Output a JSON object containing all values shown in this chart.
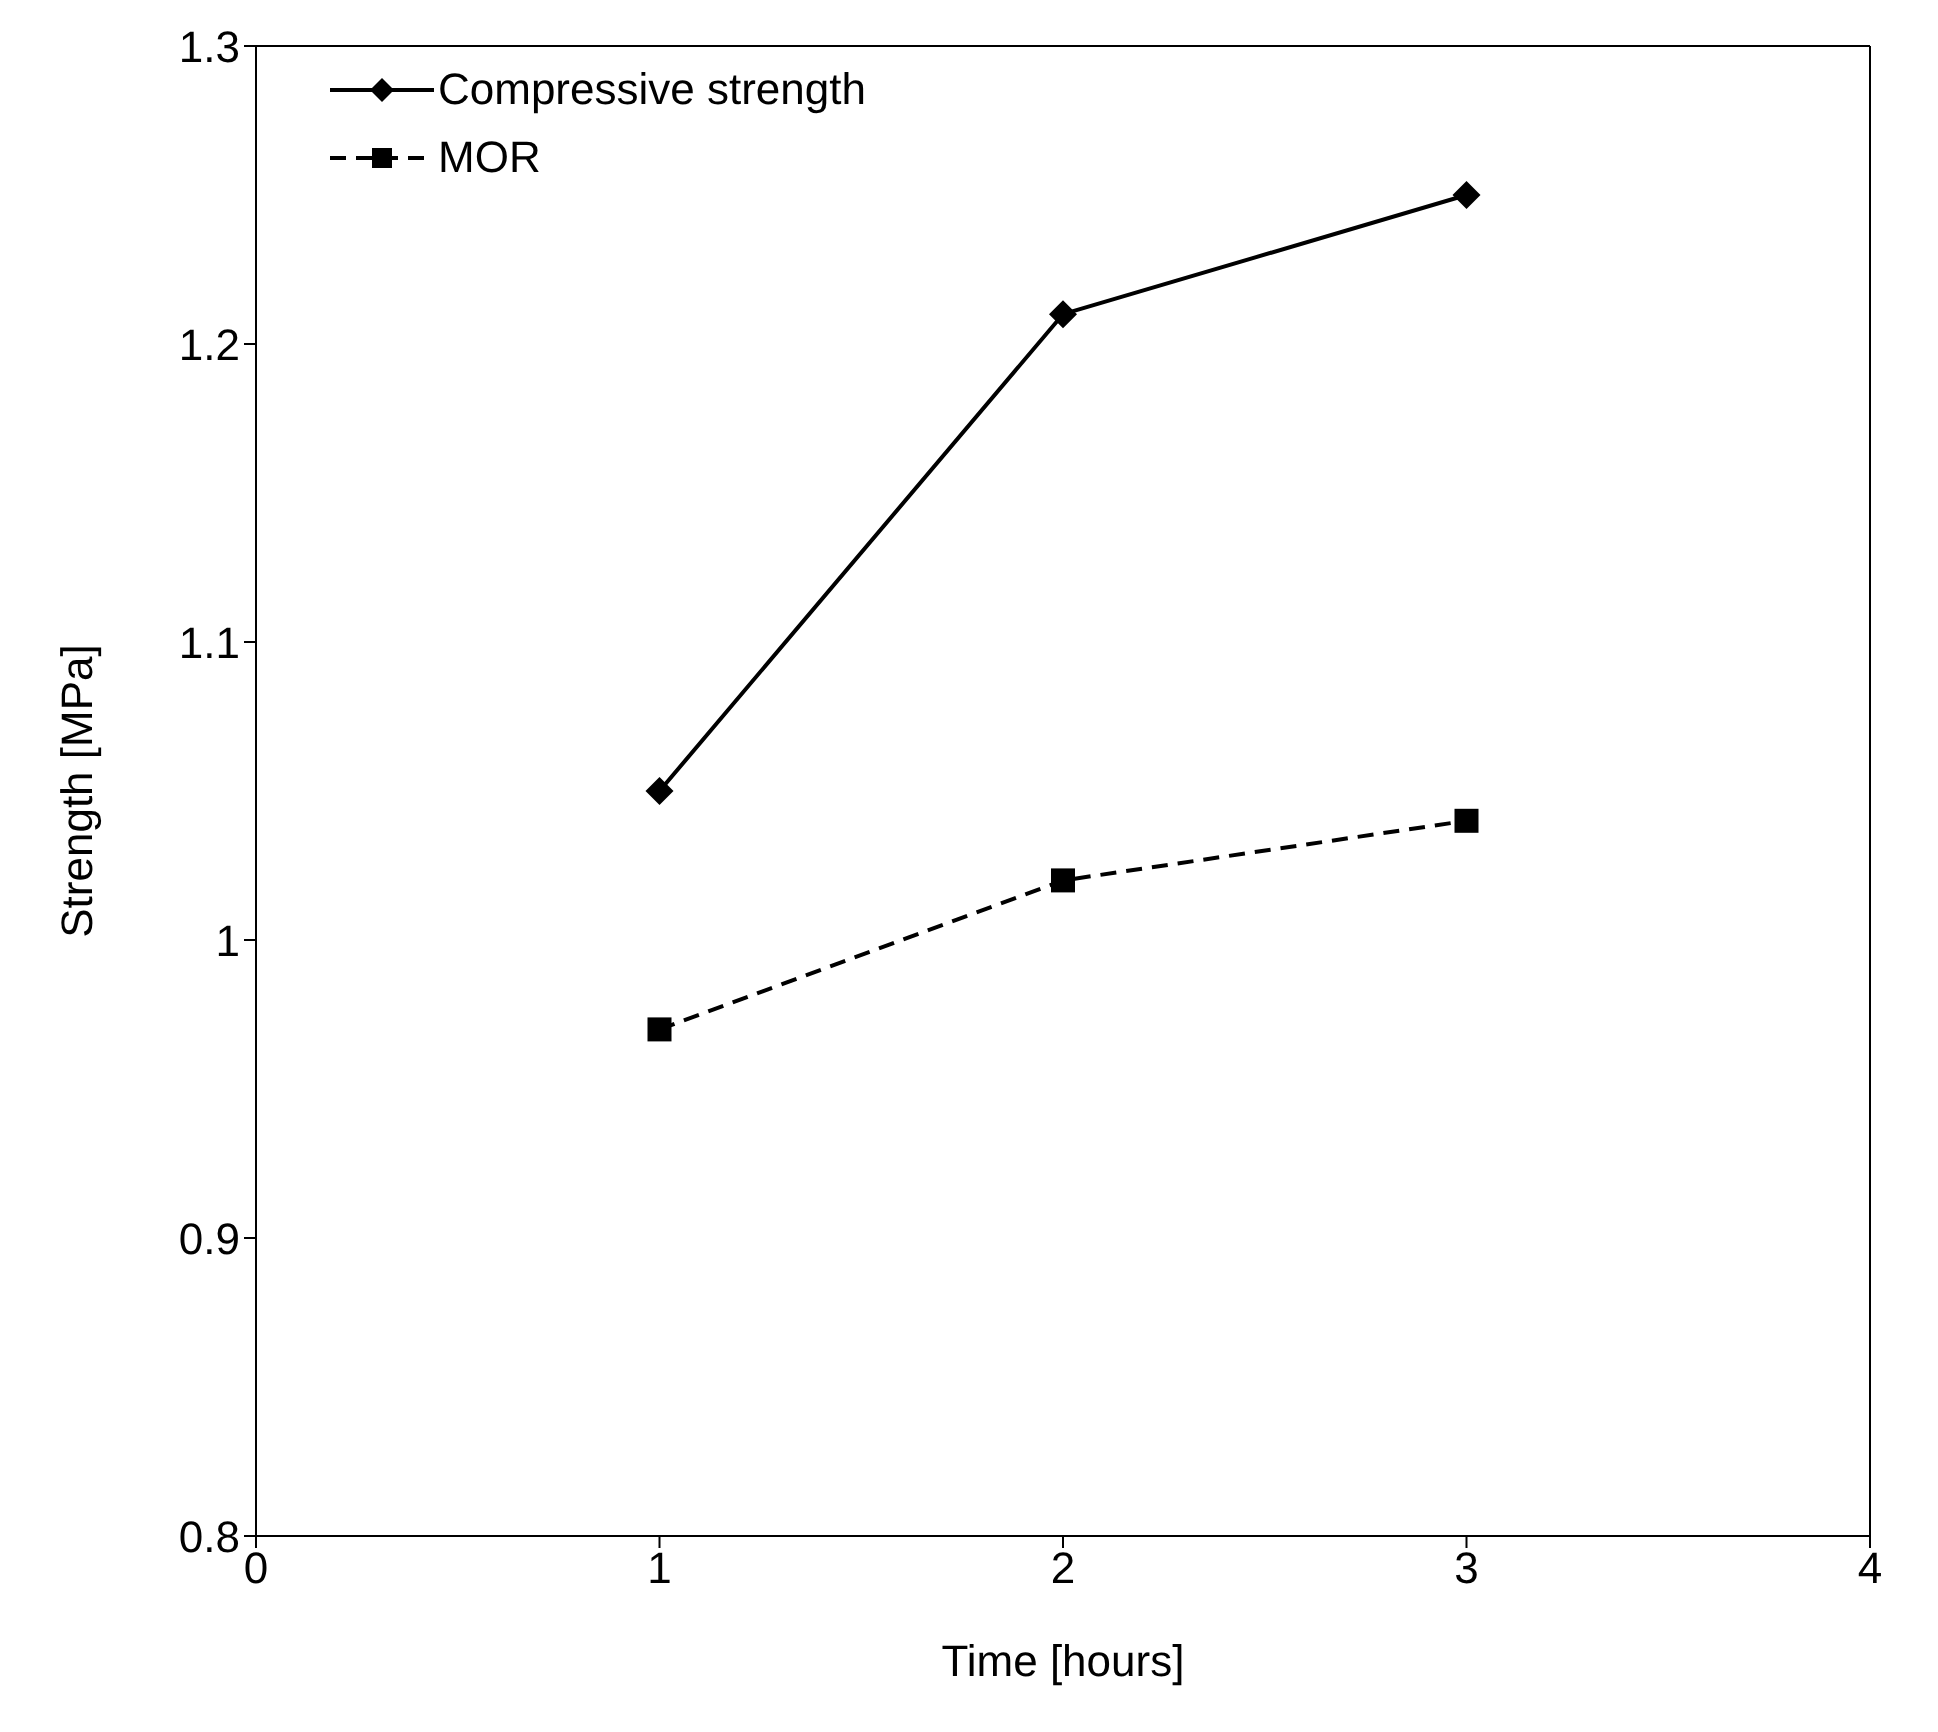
{
  "chart_data": {
    "type": "line",
    "xlabel": "Time [hours]",
    "ylabel": "Strength [MPa]",
    "x": [
      1,
      2,
      3
    ],
    "series": [
      {
        "name": "Compressive strength",
        "color": "#000000",
        "values": [
          1.05,
          1.21,
          1.25
        ],
        "marker": "diamond",
        "line_style": "solid"
      },
      {
        "name": "MOR",
        "color": "#000000",
        "values": [
          0.97,
          1.02,
          1.04
        ],
        "marker": "square",
        "line_style": "dashed"
      }
    ],
    "xlim": [
      0,
      4
    ],
    "xticks": [
      0,
      1,
      2,
      3,
      4
    ],
    "ylim": [
      0.8,
      1.3
    ],
    "yticks": [
      0.8,
      0.9,
      1,
      1.1,
      1.2,
      1.3
    ],
    "grid": false,
    "legend": "top left"
  }
}
